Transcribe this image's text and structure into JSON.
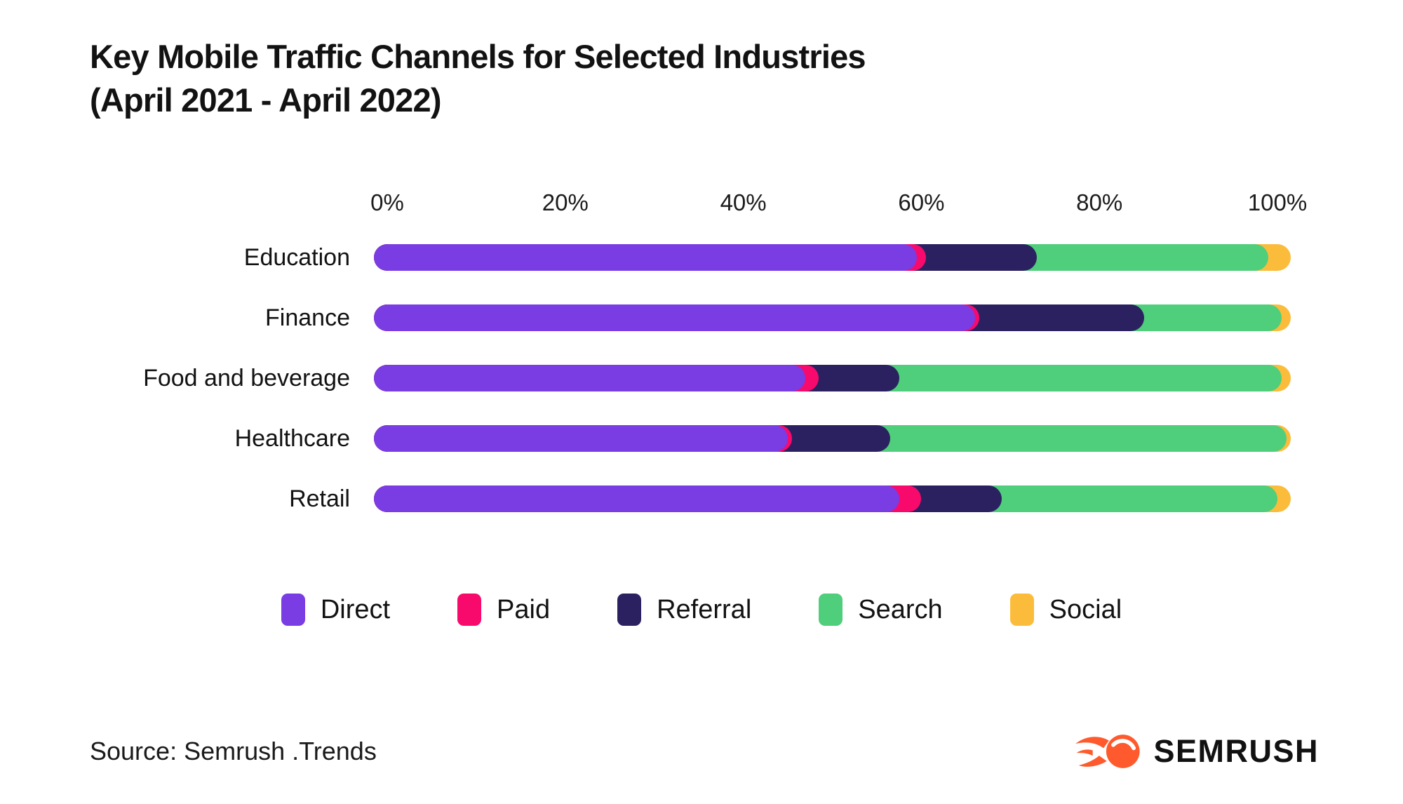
{
  "title": {
    "line1": "Key Mobile Traffic Channels for Selected Industries",
    "line2": "(April 2021 - April 2022)"
  },
  "source": "Source: Semrush .Trends",
  "brand": {
    "name": "SEMRUSH",
    "icon": "semrush-flame-icon",
    "icon_color": "#FF5A2D",
    "text_color": "#111111"
  },
  "colors": {
    "background": "#FFFFFF",
    "text": "#121212",
    "direct": "#7A3CE3",
    "paid": "#F80A6C",
    "referral": "#2B2161",
    "search": "#4FCE7B",
    "social": "#FCBC3B"
  },
  "chart_data": {
    "type": "bar",
    "orientation": "horizontal",
    "stacked": true,
    "unit": "%",
    "title": "Key Mobile Traffic Channels for Selected Industries (April 2021 - April 2022)",
    "categories": [
      "Education",
      "Finance",
      "Food and beverage",
      "Healthcare",
      "Retail"
    ],
    "series": [
      {
        "name": "Direct",
        "color": "#7A3CE3",
        "values": [
          58,
          64.5,
          45.5,
          43.5,
          56
        ]
      },
      {
        "name": "Paid",
        "color": "#F80A6C",
        "values": [
          1,
          0.5,
          1.5,
          0.5,
          2.5
        ]
      },
      {
        "name": "Referral",
        "color": "#2B2161",
        "values": [
          12.5,
          18.5,
          9,
          11,
          9
        ]
      },
      {
        "name": "Search",
        "color": "#4FCE7B",
        "values": [
          26,
          15.5,
          43,
          44.5,
          31
        ]
      },
      {
        "name": "Social",
        "color": "#FCBC3B",
        "values": [
          2.5,
          1,
          1,
          0.5,
          1.5
        ]
      }
    ],
    "x_ticks": [
      "0%",
      "20%",
      "40%",
      "60%",
      "80%",
      "100%"
    ],
    "xlim": [
      0,
      100
    ],
    "grid": false,
    "legend_position": "bottom"
  }
}
